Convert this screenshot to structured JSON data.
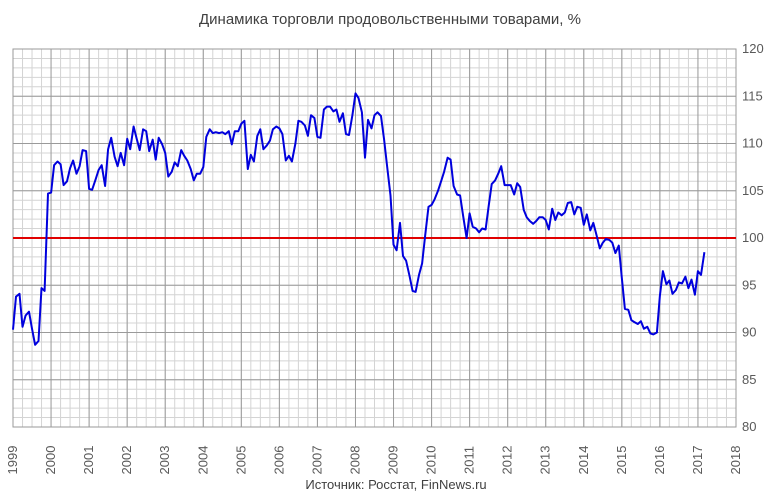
{
  "chart_data": {
    "type": "line",
    "title": "Динамика торговли продовольственными товарами, %",
    "source": "Источник: Росстат, FinNews.ru",
    "xlim": [
      1999,
      2018
    ],
    "ylim": [
      80,
      120
    ],
    "x_ticks": [
      "1999",
      "2000",
      "2001",
      "2002",
      "2003",
      "2004",
      "2005",
      "2006",
      "2007",
      "2008",
      "2009",
      "2010",
      "2011",
      "2012",
      "2013",
      "2014",
      "2015",
      "2016",
      "2017",
      "2018"
    ],
    "y_ticks": [
      "80",
      "85",
      "90",
      "95",
      "100",
      "105",
      "110",
      "115",
      "120"
    ],
    "grid": true,
    "minor_grid": true,
    "reference_line": {
      "y": 100,
      "color": "#e00000"
    },
    "colors": {
      "series": "#0000dd",
      "grid_major": "#9a9a9a",
      "grid_minor": "#d4d4d4",
      "reference": "#e00000"
    },
    "series": [
      {
        "color": "#0000dd",
        "x": [
          1999.0,
          1999.08,
          1999.17,
          1999.25,
          1999.33,
          1999.42,
          1999.5,
          1999.58,
          1999.67,
          1999.75,
          1999.83,
          1999.92,
          2000.0,
          2000.08,
          2000.17,
          2000.25,
          2000.33,
          2000.42,
          2000.5,
          2000.58,
          2000.67,
          2000.75,
          2000.83,
          2000.92,
          2001.0,
          2001.08,
          2001.17,
          2001.25,
          2001.33,
          2001.42,
          2001.5,
          2001.58,
          2001.67,
          2001.75,
          2001.83,
          2001.92,
          2002.0,
          2002.08,
          2002.17,
          2002.25,
          2002.33,
          2002.42,
          2002.5,
          2002.58,
          2002.67,
          2002.75,
          2002.83,
          2002.92,
          2003.0,
          2003.08,
          2003.17,
          2003.25,
          2003.33,
          2003.42,
          2003.5,
          2003.58,
          2003.67,
          2003.75,
          2003.83,
          2003.92,
          2004.0,
          2004.08,
          2004.17,
          2004.25,
          2004.33,
          2004.42,
          2004.5,
          2004.58,
          2004.67,
          2004.75,
          2004.83,
          2004.92,
          2005.0,
          2005.08,
          2005.17,
          2005.25,
          2005.33,
          2005.42,
          2005.5,
          2005.58,
          2005.67,
          2005.75,
          2005.83,
          2005.92,
          2006.0,
          2006.08,
          2006.17,
          2006.25,
          2006.33,
          2006.42,
          2006.5,
          2006.58,
          2006.67,
          2006.75,
          2006.83,
          2006.92,
          2007.0,
          2007.08,
          2007.17,
          2007.25,
          2007.33,
          2007.42,
          2007.5,
          2007.58,
          2007.67,
          2007.75,
          2007.83,
          2007.92,
          2008.0,
          2008.08,
          2008.17,
          2008.25,
          2008.33,
          2008.42,
          2008.5,
          2008.58,
          2008.67,
          2008.75,
          2008.83,
          2008.92,
          2009.0,
          2009.08,
          2009.17,
          2009.25,
          2009.33,
          2009.42,
          2009.5,
          2009.58,
          2009.67,
          2009.75,
          2009.83,
          2009.92,
          2010.0,
          2010.08,
          2010.17,
          2010.25,
          2010.33,
          2010.42,
          2010.5,
          2010.58,
          2010.67,
          2010.75,
          2010.83,
          2010.92,
          2011.0,
          2011.08,
          2011.17,
          2011.25,
          2011.33,
          2011.42,
          2011.5,
          2011.58,
          2011.67,
          2011.75,
          2011.83,
          2011.92,
          2012.0,
          2012.08,
          2012.17,
          2012.25,
          2012.33,
          2012.42,
          2012.5,
          2012.58,
          2012.67,
          2012.75,
          2012.83,
          2012.92,
          2013.0,
          2013.08,
          2013.17,
          2013.25,
          2013.33,
          2013.42,
          2013.5,
          2013.58,
          2013.67,
          2013.75,
          2013.83,
          2013.92,
          2014.0,
          2014.08,
          2014.17,
          2014.25,
          2014.33,
          2014.42,
          2014.5,
          2014.58,
          2014.67,
          2014.75,
          2014.83,
          2014.92,
          2015.0,
          2015.08,
          2015.17,
          2015.25,
          2015.33,
          2015.42,
          2015.5,
          2015.58,
          2015.67,
          2015.75,
          2015.83,
          2015.92,
          2016.0,
          2016.08,
          2016.17,
          2016.25,
          2016.33,
          2016.42,
          2016.5,
          2016.58,
          2016.67,
          2016.75,
          2016.83,
          2016.92,
          2017.0,
          2017.08,
          2017.17
        ],
        "values": [
          90.3,
          93.8,
          94.1,
          90.6,
          91.8,
          92.2,
          90.4,
          88.7,
          89.1,
          94.7,
          94.4,
          104.7,
          104.8,
          107.7,
          108.1,
          107.8,
          105.6,
          106.0,
          107.4,
          108.2,
          106.8,
          107.6,
          109.3,
          109.2,
          105.2,
          105.1,
          106.2,
          107.2,
          107.7,
          105.5,
          109.4,
          110.6,
          108.6,
          107.6,
          109.0,
          107.7,
          110.5,
          109.4,
          111.8,
          110.5,
          109.3,
          111.5,
          111.3,
          109.2,
          110.4,
          108.3,
          110.6,
          109.9,
          109.0,
          106.5,
          107.0,
          108.0,
          107.6,
          109.3,
          108.7,
          108.2,
          107.3,
          106.1,
          106.8,
          106.8,
          107.5,
          110.7,
          111.5,
          111.1,
          111.2,
          111.1,
          111.2,
          111.0,
          111.3,
          109.9,
          111.3,
          111.3,
          112.1,
          112.4,
          107.3,
          108.8,
          108.1,
          110.8,
          111.5,
          109.4,
          109.8,
          110.3,
          111.5,
          111.8,
          111.6,
          111.0,
          108.2,
          108.7,
          108.1,
          110.0,
          112.4,
          112.3,
          111.9,
          110.8,
          113.0,
          112.7,
          110.7,
          110.6,
          113.6,
          113.9,
          113.9,
          113.4,
          113.6,
          112.3,
          113.2,
          111.0,
          110.9,
          113.0,
          115.3,
          114.8,
          113.3,
          108.5,
          112.5,
          111.6,
          113.0,
          113.3,
          112.9,
          110.5,
          107.6,
          104.5,
          99.3,
          98.7,
          101.6,
          98.1,
          97.6,
          96.0,
          94.4,
          94.3,
          96.1,
          97.3,
          100.2,
          103.3,
          103.5,
          104.1,
          105.0,
          106.0,
          107.0,
          108.5,
          108.3,
          105.5,
          104.6,
          104.5,
          102.3,
          100.0,
          102.6,
          101.2,
          101.0,
          100.6,
          101.0,
          100.9,
          103.4,
          105.7,
          106.1,
          106.8,
          107.6,
          105.6,
          105.6,
          105.6,
          104.6,
          105.8,
          105.4,
          103.0,
          102.2,
          101.8,
          101.5,
          101.8,
          102.2,
          102.2,
          101.9,
          100.9,
          103.1,
          101.9,
          102.7,
          102.4,
          102.7,
          103.7,
          103.8,
          102.5,
          103.3,
          103.2,
          101.4,
          102.5,
          100.8,
          101.6,
          100.4,
          98.9,
          99.5,
          99.9,
          99.8,
          99.5,
          98.4,
          99.2,
          95.8,
          92.5,
          92.4,
          91.3,
          91.1,
          90.9,
          91.2,
          90.4,
          90.6,
          89.9,
          89.8,
          90.0,
          93.9,
          96.5,
          95.1,
          95.5,
          94.1,
          94.5,
          95.3,
          95.2,
          95.9,
          94.7,
          95.6,
          94.0,
          96.5,
          96.1,
          98.5
        ]
      }
    ]
  }
}
